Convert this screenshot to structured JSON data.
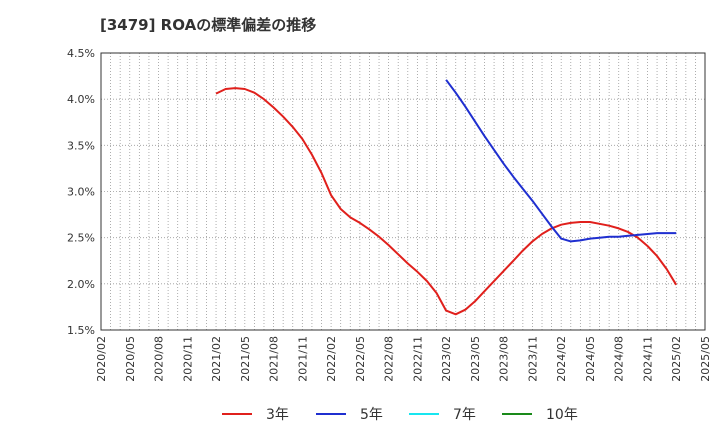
{
  "chart_data": {
    "type": "line",
    "title": "[3479]  ROAの標準偏差の推移",
    "xlabel": "",
    "ylabel": "",
    "x_start": "2020/02",
    "x_end": "2025/05",
    "ylim": [
      1.5,
      4.5
    ],
    "y_ticks": [
      1.5,
      2.0,
      2.5,
      3.0,
      3.5,
      4.0,
      4.5
    ],
    "y_tick_labels": [
      "1.5%",
      "2.0%",
      "2.5%",
      "3.0%",
      "3.5%",
      "4.0%",
      "4.5%"
    ],
    "x_tick_labels": [
      "2020/02",
      "2020/05",
      "2020/08",
      "2020/11",
      "2021/02",
      "2021/05",
      "2021/08",
      "2021/11",
      "2022/02",
      "2022/05",
      "2022/08",
      "2022/11",
      "2023/02",
      "2023/05",
      "2023/08",
      "2023/11",
      "2024/02",
      "2024/05",
      "2024/08",
      "2024/11",
      "2025/02",
      "2025/05"
    ],
    "grid": true,
    "legend_position": "bottom",
    "series": [
      {
        "name": "3年",
        "color": "#e0201c",
        "x": [
          "2021/02",
          "2021/03",
          "2021/04",
          "2021/05",
          "2021/06",
          "2021/07",
          "2021/08",
          "2021/09",
          "2021/10",
          "2021/11",
          "2021/12",
          "2022/01",
          "2022/02",
          "2022/03",
          "2022/04",
          "2022/05",
          "2022/06",
          "2022/07",
          "2022/08",
          "2022/09",
          "2022/10",
          "2022/11",
          "2022/12",
          "2023/01",
          "2023/02",
          "2023/03",
          "2023/04",
          "2023/05",
          "2023/06",
          "2023/07",
          "2023/08",
          "2023/09",
          "2023/10",
          "2023/11",
          "2023/12",
          "2024/01",
          "2024/02",
          "2024/03",
          "2024/04",
          "2024/05",
          "2024/06",
          "2024/07",
          "2024/08",
          "2024/09",
          "2024/10",
          "2024/11",
          "2024/12",
          "2025/01",
          "2025/02"
        ],
        "values": [
          4.06,
          4.11,
          4.12,
          4.11,
          4.07,
          4.0,
          3.91,
          3.81,
          3.7,
          3.57,
          3.4,
          3.2,
          2.96,
          2.81,
          2.72,
          2.66,
          2.59,
          2.51,
          2.42,
          2.32,
          2.22,
          2.13,
          2.03,
          1.9,
          1.71,
          1.67,
          1.72,
          1.81,
          1.92,
          2.03,
          2.14,
          2.25,
          2.36,
          2.46,
          2.54,
          2.6,
          2.64,
          2.66,
          2.67,
          2.67,
          2.65,
          2.63,
          2.6,
          2.56,
          2.5,
          2.41,
          2.3,
          2.16,
          1.99
        ]
      },
      {
        "name": "5年",
        "color": "#1f2fd0",
        "x": [
          "2023/02",
          "2023/03",
          "2023/04",
          "2023/05",
          "2023/06",
          "2023/07",
          "2023/08",
          "2023/09",
          "2023/10",
          "2023/11",
          "2023/12",
          "2024/01",
          "2024/02",
          "2024/03",
          "2024/04",
          "2024/05",
          "2024/06",
          "2024/07",
          "2024/08",
          "2024/09",
          "2024/10",
          "2024/11",
          "2024/12",
          "2025/01",
          "2025/02"
        ],
        "values": [
          4.21,
          4.07,
          3.92,
          3.76,
          3.6,
          3.45,
          3.3,
          3.16,
          3.03,
          2.9,
          2.76,
          2.62,
          2.49,
          2.46,
          2.47,
          2.49,
          2.5,
          2.51,
          2.51,
          2.52,
          2.53,
          2.54,
          2.55,
          2.55,
          2.55
        ]
      },
      {
        "name": "7年",
        "color": "#18e6f0",
        "x": [],
        "values": []
      },
      {
        "name": "10年",
        "color": "#1a8a1a",
        "x": [],
        "values": []
      }
    ]
  }
}
